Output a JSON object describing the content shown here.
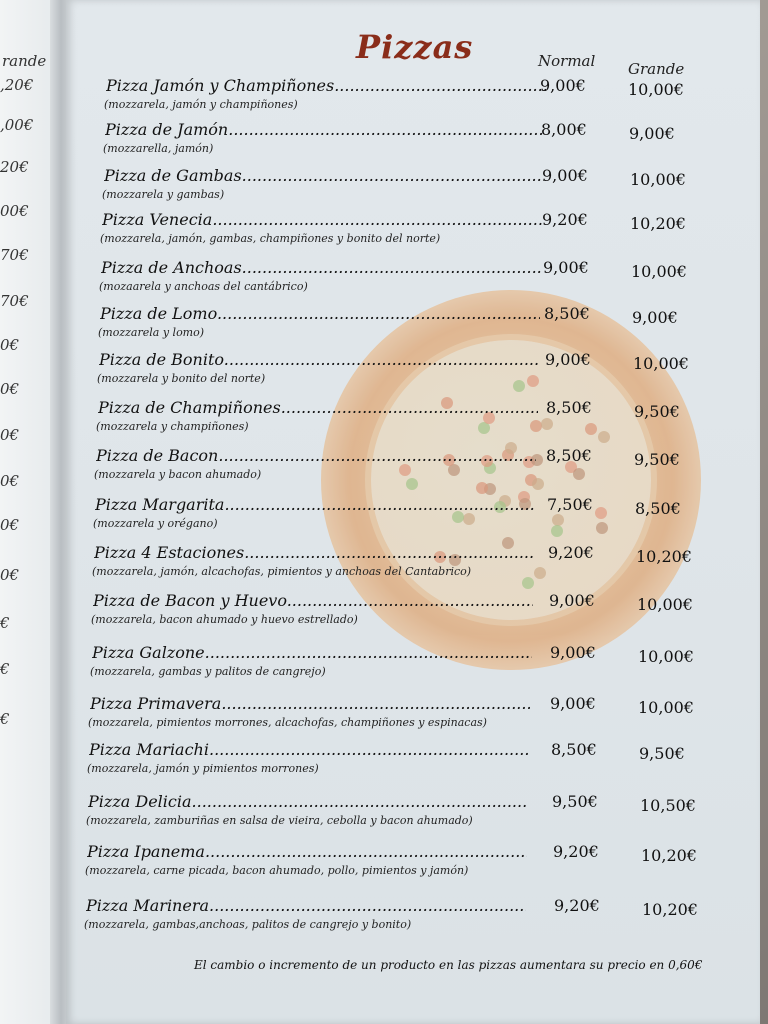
{
  "left_page": {
    "fragments": [
      "rande",
      ",20€",
      ",00€",
      "20€",
      "00€",
      "70€",
      "70€",
      "0€",
      "0€",
      "0€",
      "0€",
      "0€",
      "0€",
      "€",
      "€",
      "€"
    ]
  },
  "title": "Pizzas",
  "columns": {
    "normal": "Normal",
    "grande": "Grande"
  },
  "items": [
    {
      "name": "Pizza Jamón y Champiñones",
      "desc": "(mozzarela, jamón y champiñones)",
      "normal": "9,00€",
      "grande": "10,00€"
    },
    {
      "name": "Pizza de Jamón",
      "desc": "(mozzarella, jamón)",
      "normal": "8,00€",
      "grande": "9,00€"
    },
    {
      "name": "Pizza de Gambas",
      "desc": "(mozzarela y gambas)",
      "normal": "9,00€",
      "grande": "10,00€"
    },
    {
      "name": "Pizza Venecia",
      "desc": "(mozzarela, jamón, gambas, champiñones y bonito del norte)",
      "normal": "9,20€",
      "grande": "10,20€"
    },
    {
      "name": "Pizza de Anchoas",
      "desc": "(mozaarela y anchoas del cantábrico)",
      "normal": "9,00€",
      "grande": "10,00€"
    },
    {
      "name": "Pizza de Lomo",
      "desc": "(mozzarela y lomo)",
      "normal": "8,50€",
      "grande": "9,00€"
    },
    {
      "name": "Pizza de Bonito",
      "desc": "(mozzarela y bonito del norte)",
      "normal": "9,00€",
      "grande": "10,00€"
    },
    {
      "name": "Pizza  de Champiñones",
      "desc": "(mozzarela y champiñones)",
      "normal": "8,50€",
      "grande": "9,50€"
    },
    {
      "name": "Pizza de Bacon",
      "desc": "(mozzarela y bacon ahumado)",
      "normal": "8,50€",
      "grande": "9,50€"
    },
    {
      "name": "Pizza Margarita",
      "desc": "(mozzarela y orégano)",
      "normal": "7,50€",
      "grande": "8,50€"
    },
    {
      "name": "Pizza 4 Estaciones",
      "desc": "(mozzarela, jamón, alcachofas, pimientos y anchoas del Cantabrico)",
      "normal": "9,20€",
      "grande": "10,20€"
    },
    {
      "name": "Pizza de Bacon y Huevo",
      "desc": "(mozzarela, bacon ahumado y huevo estrellado)",
      "normal": "9,00€",
      "grande": "10,00€"
    },
    {
      "name": "Pizza Galzone",
      "desc": "(mozzarela, gambas y palitos de cangrejo)",
      "normal": "9,00€",
      "grande": "10,00€"
    },
    {
      "name": "Pizza Primavera",
      "desc": "(mozzarela, pimientos morrones, alcachofas, champiñones y espinacas)",
      "normal": "9,00€",
      "grande": "10,00€"
    },
    {
      "name": "Pizza Mariachi",
      "desc": "(mozzarela, jamón y pimientos morrones)",
      "normal": "8,50€",
      "grande": "9,50€"
    },
    {
      "name": "Pizza Delicia",
      "desc": "(mozzarela, zamburiñas en salsa de vieira, cebolla y bacon ahumado)",
      "normal": "9,50€",
      "grande": "10,50€"
    },
    {
      "name": "Pizza Ipanema",
      "desc": "(mozzarela, carne picada, bacon ahumado, pollo, pimientos y jamón)",
      "normal": "9,20€",
      "grande": "10,20€"
    },
    {
      "name": "Pizza Marinera",
      "desc": "(mozzarela, gambas,anchoas, palitos de cangrejo y bonito)",
      "normal": "9,20€",
      "grande": "10,20€"
    }
  ],
  "note": "El cambio o incremento de un producto en las pizzas aumentara su precio en 0,60€",
  "colors": {
    "title": "#8a2d1a",
    "page": "#e0e6ea"
  }
}
